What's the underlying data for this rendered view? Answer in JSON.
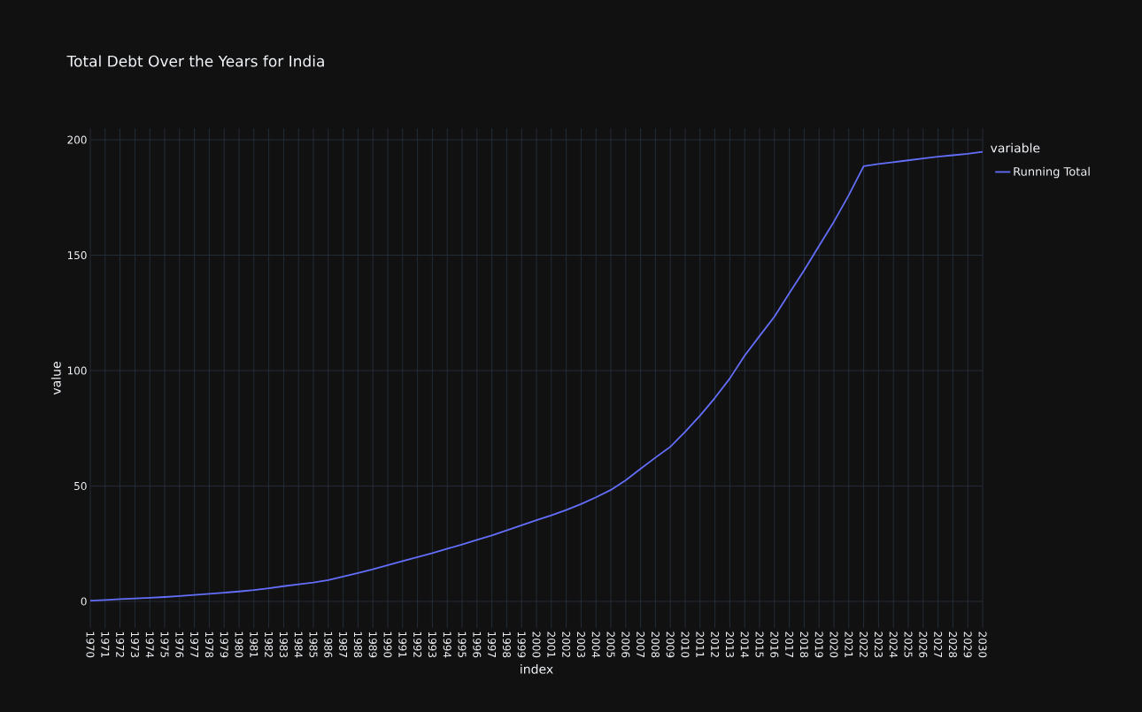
{
  "chart_data": {
    "type": "line",
    "title": "Total Debt Over the Years for India",
    "xlabel": "index",
    "ylabel": "value",
    "legend_title": "variable",
    "categories": [
      "1970",
      "1971",
      "1972",
      "1973",
      "1974",
      "1975",
      "1976",
      "1977",
      "1978",
      "1979",
      "1980",
      "1981",
      "1982",
      "1983",
      "1984",
      "1985",
      "1986",
      "1987",
      "1988",
      "1989",
      "1990",
      "1991",
      "1992",
      "1993",
      "1994",
      "1995",
      "1996",
      "1997",
      "1998",
      "1999",
      "2000",
      "2001",
      "2002",
      "2003",
      "2004",
      "2005",
      "2006",
      "2007",
      "2008",
      "2009",
      "2010",
      "2011",
      "2012",
      "2013",
      "2014",
      "2015",
      "2016",
      "2017",
      "2018",
      "2019",
      "2020",
      "2021",
      "2022",
      "2023",
      "2024",
      "2025",
      "2026",
      "2027",
      "2028",
      "2029",
      "2030"
    ],
    "series": [
      {
        "name": "Running Total",
        "color": "#636efa",
        "values": [
          0.3,
          0.6,
          1.0,
          1.3,
          1.6,
          1.9,
          2.3,
          2.8,
          3.3,
          3.8,
          4.3,
          4.9,
          5.7,
          6.6,
          7.4,
          8.2,
          9.2,
          10.8,
          12.3,
          13.9,
          15.7,
          17.5,
          19.2,
          20.9,
          22.8,
          24.7,
          26.7,
          28.6,
          30.8,
          33.0,
          35.2,
          37.3,
          39.6,
          42.2,
          45.1,
          48.3,
          52.5,
          57.5,
          62.3,
          67.0,
          73.5,
          80.5,
          88.2,
          96.6,
          106.5,
          115.0,
          123.4,
          133.5,
          143.5,
          154.0,
          164.5,
          176.0,
          188.6,
          189.5,
          190.3,
          191.1,
          191.9,
          192.7,
          193.3,
          193.9,
          194.8
        ]
      }
    ],
    "ylim": [
      -11.5,
      205
    ],
    "yticks": [
      0,
      50,
      100,
      150,
      200
    ],
    "grid": true,
    "legend": "top right",
    "marker": "none",
    "line_style": "solid"
  }
}
